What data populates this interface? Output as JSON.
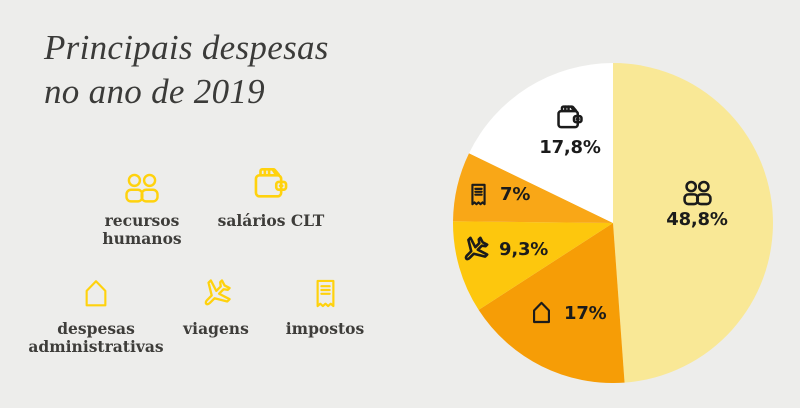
{
  "background_color": "#EDEDEB",
  "title": {
    "line1": "Principais despesas",
    "line2": "no ano de 2019",
    "color": "#3B3B39"
  },
  "legend": {
    "icon_color": "#FFD20D",
    "text_color": "#3E3D3A",
    "items": [
      {
        "id": "recursos-humanos",
        "label": "recursos humanos",
        "icon": "people-icon"
      },
      {
        "id": "salarios-clt",
        "label": "salários CLT",
        "icon": "wallet-icon"
      },
      {
        "id": "despesas-administrativas",
        "label": "despesas administrativas",
        "icon": "house-icon"
      },
      {
        "id": "viagens",
        "label": "viagens",
        "icon": "plane-icon"
      },
      {
        "id": "impostos",
        "label": "impostos",
        "icon": "receipt-icon"
      }
    ]
  },
  "chart_data": {
    "type": "pie",
    "title": "Principais despesas no ano de 2019",
    "start_angle_deg": 0,
    "direction": "clockwise",
    "label_color": "#1B1B1B",
    "slices": [
      {
        "id": "recursos-humanos",
        "label": "recursos humanos",
        "value": 48.8,
        "display": "48,8%",
        "color": "#F9E896",
        "icon": "people-icon"
      },
      {
        "id": "despesas-administrativas",
        "label": "despesas administrativas",
        "value": 17.0,
        "display": "17%",
        "color": "#F69D06",
        "icon": "house-icon"
      },
      {
        "id": "viagens",
        "label": "viagens",
        "value": 9.3,
        "display": "9,3%",
        "color": "#FDC70D",
        "icon": "plane-icon"
      },
      {
        "id": "impostos",
        "label": "impostos",
        "value": 7.0,
        "display": "7%",
        "color": "#F9A717",
        "icon": "receipt-icon"
      },
      {
        "id": "salarios-clt",
        "label": "salários CLT",
        "value": 17.8,
        "display": "17,8%",
        "color": "#FFFFFF",
        "icon": "wallet-icon"
      }
    ]
  }
}
